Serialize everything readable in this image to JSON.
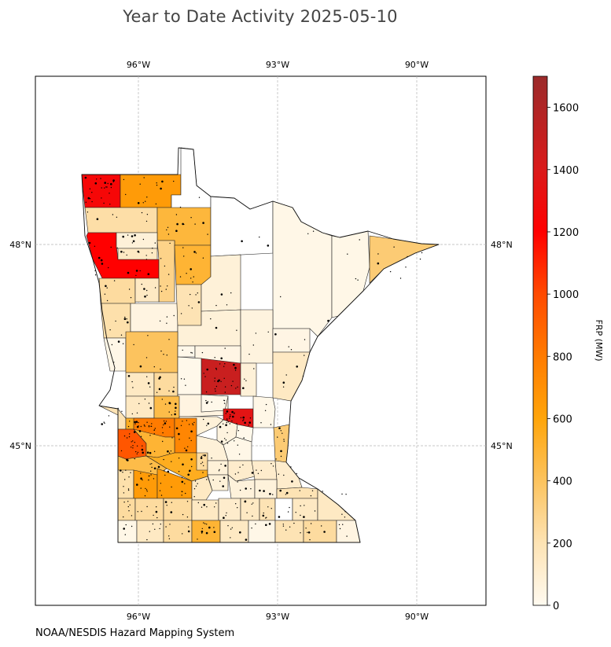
{
  "title": "Year to Date Activity 2025-05-10",
  "source": "NOAA/NESDIS Hazard Mapping System",
  "map": {
    "region": "Minnesota",
    "longitude_ticks": [
      {
        "value": -96,
        "label": "96°W"
      },
      {
        "value": -93,
        "label": "93°W"
      },
      {
        "value": -90,
        "label": "90°W"
      }
    ],
    "latitude_ticks": [
      {
        "value": 48,
        "label": "48°N"
      },
      {
        "value": 45,
        "label": "45°N"
      }
    ],
    "gridlines": true,
    "counties": [
      {
        "id": "kittson",
        "frp": 1250
      },
      {
        "id": "roseau",
        "frp": 650
      },
      {
        "id": "lake-of-the-woods",
        "frp": 0
      },
      {
        "id": "marshall",
        "frp": 230
      },
      {
        "id": "beltrami-west",
        "frp": 480
      },
      {
        "id": "polk",
        "frp": 1200
      },
      {
        "id": "red-lake",
        "frp": 80
      },
      {
        "id": "pennington",
        "frp": 150
      },
      {
        "id": "clearwater",
        "frp": 300
      },
      {
        "id": "beltrami-south",
        "frp": 500
      },
      {
        "id": "koochiching",
        "frp": 0
      },
      {
        "id": "st-louis",
        "frp": 30
      },
      {
        "id": "lake",
        "frp": 30
      },
      {
        "id": "cook",
        "frp": 350
      },
      {
        "id": "norman",
        "frp": 250
      },
      {
        "id": "mahnomen",
        "frp": 150
      },
      {
        "id": "clay",
        "frp": 220
      },
      {
        "id": "becker",
        "frp": 50
      },
      {
        "id": "hubbard",
        "frp": 200
      },
      {
        "id": "itasca",
        "frp": 80
      },
      {
        "id": "cass",
        "frp": 80
      },
      {
        "id": "aitkin",
        "frp": 60
      },
      {
        "id": "carlton",
        "frp": 40
      },
      {
        "id": "wilkin",
        "frp": 30
      },
      {
        "id": "otter-tail",
        "frp": 400
      },
      {
        "id": "wadena",
        "frp": 20
      },
      {
        "id": "crow-wing",
        "frp": 40
      },
      {
        "id": "mille-lacs",
        "frp": 1480
      },
      {
        "id": "kanabec",
        "frp": 80
      },
      {
        "id": "pine",
        "frp": 150
      },
      {
        "id": "grant",
        "frp": 150
      },
      {
        "id": "douglas",
        "frp": 250
      },
      {
        "id": "todd",
        "frp": 20
      },
      {
        "id": "morrison",
        "frp": 50
      },
      {
        "id": "benton",
        "frp": 20
      },
      {
        "id": "isanti",
        "frp": 1350
      },
      {
        "id": "chisago",
        "frp": 30
      },
      {
        "id": "stevens",
        "frp": 150
      },
      {
        "id": "pope",
        "frp": 450
      },
      {
        "id": "stearns",
        "frp": 80
      },
      {
        "id": "sherburne",
        "frp": 60
      },
      {
        "id": "anoka",
        "frp": 20
      },
      {
        "id": "big-stone",
        "frp": 200
      },
      {
        "id": "swift",
        "frp": 550
      },
      {
        "id": "kandiyohi",
        "frp": 800
      },
      {
        "id": "meeker",
        "frp": 750
      },
      {
        "id": "wright",
        "frp": 80
      },
      {
        "id": "hennepin",
        "frp": 30
      },
      {
        "id": "washington",
        "frp": 350
      },
      {
        "id": "lac-qui-parle",
        "frp": 950
      },
      {
        "id": "chippewa",
        "frp": 500
      },
      {
        "id": "renville",
        "frp": 550
      },
      {
        "id": "mcleod",
        "frp": 250
      },
      {
        "id": "carver",
        "frp": 80
      },
      {
        "id": "scott",
        "frp": 120
      },
      {
        "id": "dakota",
        "frp": 120
      },
      {
        "id": "goodhue",
        "frp": 120
      },
      {
        "id": "yellow-medicine",
        "frp": 450
      },
      {
        "id": "lincoln",
        "frp": 220
      },
      {
        "id": "lyon",
        "frp": 650
      },
      {
        "id": "redwood",
        "frp": 650
      },
      {
        "id": "brown",
        "frp": 150
      },
      {
        "id": "nicollet",
        "frp": 80
      },
      {
        "id": "le-sueur",
        "frp": 70
      },
      {
        "id": "rice",
        "frp": 70
      },
      {
        "id": "wabasha",
        "frp": 200
      },
      {
        "id": "pipestone",
        "frp": 250
      },
      {
        "id": "murray",
        "frp": 250
      },
      {
        "id": "cottonwood",
        "frp": 250
      },
      {
        "id": "watonwan",
        "frp": 150
      },
      {
        "id": "blue-earth",
        "frp": 120
      },
      {
        "id": "waseca",
        "frp": 150
      },
      {
        "id": "steele",
        "frp": 200
      },
      {
        "id": "dodge",
        "frp": 0
      },
      {
        "id": "olmsted",
        "frp": 150
      },
      {
        "id": "winona",
        "frp": 150
      },
      {
        "id": "rock",
        "frp": 30
      },
      {
        "id": "nobles",
        "frp": 150
      },
      {
        "id": "jackson",
        "frp": 250
      },
      {
        "id": "martin",
        "frp": 500
      },
      {
        "id": "faribault",
        "frp": 150
      },
      {
        "id": "freeborn",
        "frp": 30
      },
      {
        "id": "mower",
        "frp": 200
      },
      {
        "id": "fillmore",
        "frp": 250
      },
      {
        "id": "houston",
        "frp": 50
      }
    ]
  },
  "colorbar": {
    "label": "FRP (MW)",
    "min": 0,
    "max": 1700,
    "ticks": [
      0,
      200,
      400,
      600,
      800,
      1000,
      1200,
      1400,
      1600
    ],
    "stops": [
      {
        "value": 0,
        "color": "#fffaf0"
      },
      {
        "value": 200,
        "color": "#fde3b4"
      },
      {
        "value": 400,
        "color": "#fcc35e"
      },
      {
        "value": 600,
        "color": "#ffa50a"
      },
      {
        "value": 800,
        "color": "#ff7b00"
      },
      {
        "value": 1000,
        "color": "#ff4a00"
      },
      {
        "value": 1200,
        "color": "#ff0000"
      },
      {
        "value": 1400,
        "color": "#da1a1a"
      },
      {
        "value": 1700,
        "color": "#9b2b2b"
      }
    ]
  },
  "colors": {
    "no_data_fill": "#ffffff",
    "county_stroke": "#222222",
    "fire_dot": "#000000"
  }
}
